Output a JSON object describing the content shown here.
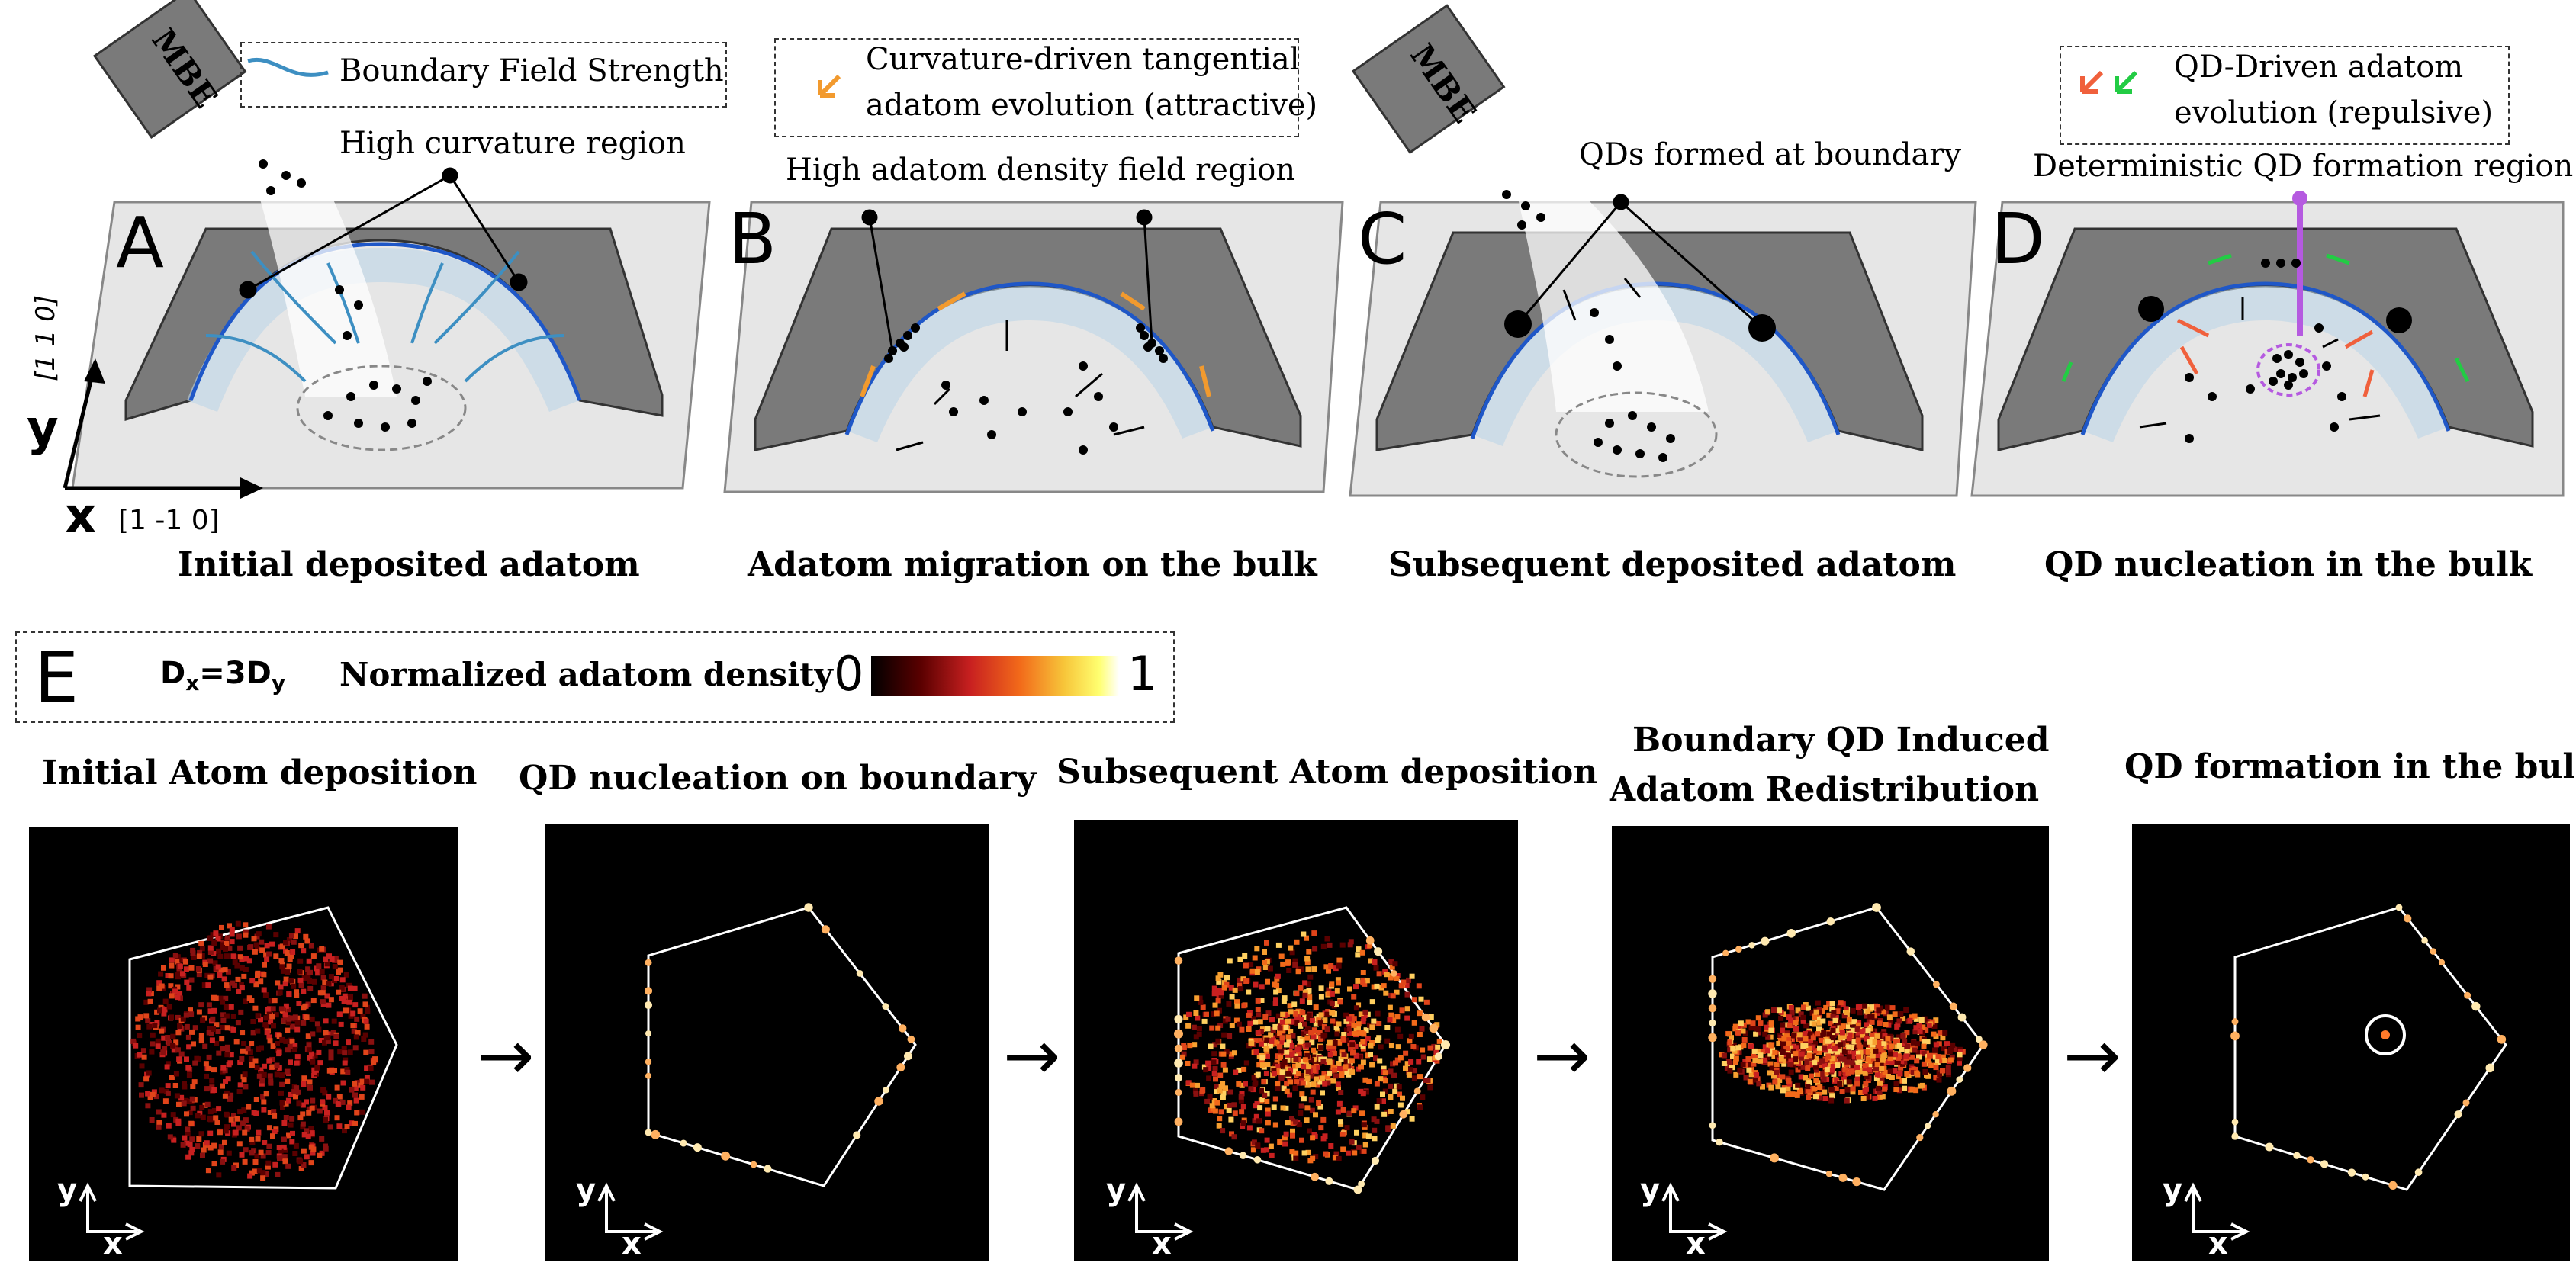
{
  "panels": [
    {
      "letter": "A",
      "caption": "Initial deposited adatom",
      "mbe": "MBE",
      "callout": "High curvature region",
      "legend": "Boundary Field Strength"
    },
    {
      "letter": "B",
      "caption": "Adatom migration on the bulk",
      "callout": "High adatom density field region",
      "legend": "Curvature-driven tangential adatom evolution (attractive)",
      "legend_line1": "Curvature-driven tangential",
      "legend_line2": "adatom evolution (attractive)"
    },
    {
      "letter": "C",
      "caption": "Subsequent deposited adatom",
      "mbe": "MBE",
      "callout": "QDs formed at boundary"
    },
    {
      "letter": "D",
      "caption": "QD nucleation in the bulk",
      "callout": "Deterministic QD formation region",
      "legend": "QD-Driven adatom evolution (repulsive)",
      "legend_line1": "QD-Driven adatom",
      "legend_line2": "evolution (repulsive)"
    }
  ],
  "axes": {
    "y": "y",
    "y_dir": "[1 1 0]",
    "x": "x",
    "x_dir": "[1 -1 0]"
  },
  "section_e": {
    "letter": "E",
    "diffusion": "Dx=3Dy",
    "d_main": "D",
    "d_sub_x": "x",
    "d_eq": "=3D",
    "d_sub_y": "y",
    "colorbar_label": "Normalized adatom density",
    "colorbar_min": "0",
    "colorbar_max": "1",
    "colors": [
      "#000000",
      "#5a0000",
      "#c82020",
      "#f26a1a",
      "#f7c63a",
      "#ffff70",
      "#ffffff"
    ]
  },
  "simulations": [
    {
      "title": "Initial Atom deposition"
    },
    {
      "title": "QD nucleation on boundary"
    },
    {
      "title": "Subsequent Atom deposition"
    },
    {
      "title_line1": "Boundary QD Induced",
      "title_line2": "Adatom Redistribution",
      "title": "Boundary QD Induced Adatom Redistribution"
    },
    {
      "title": "QD formation in the bulk"
    }
  ],
  "sim_axes": {
    "y": "y",
    "x": "x"
  },
  "arrow_glyph": "→"
}
